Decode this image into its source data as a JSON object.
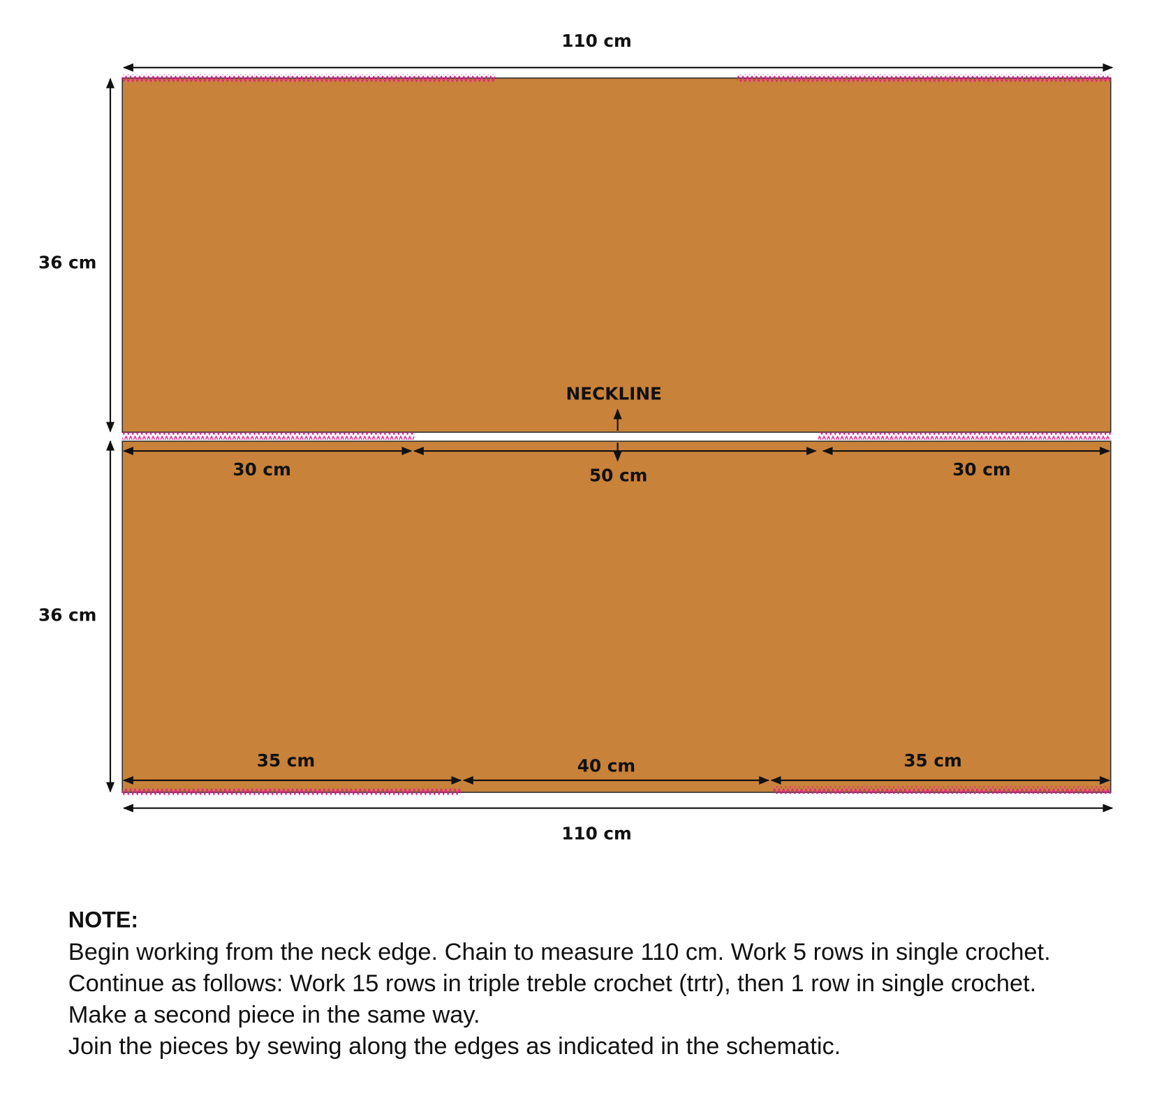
{
  "top_piece": {
    "width_label": "110 cm",
    "height_label": "36 cm"
  },
  "neckline": {
    "label": "NECKLINE",
    "left": "30 cm",
    "center": "50 cm",
    "right": "30 cm"
  },
  "bottom_piece": {
    "height_label": "36 cm",
    "left": "35 cm",
    "center": "40 cm",
    "right": "35 cm",
    "width_label": "110 cm"
  },
  "note": {
    "title": "NOTE:",
    "lines": [
      "Begin working from the neck edge. Chain to measure 110 cm. Work 5 rows in single crochet.",
      "Continue as follows: Work 15 rows in triple treble crochet (trtr), then 1 row in single crochet.",
      "Make a second piece in the same way.",
      "Join the pieces by sewing along the edges as indicated in the schematic."
    ]
  }
}
